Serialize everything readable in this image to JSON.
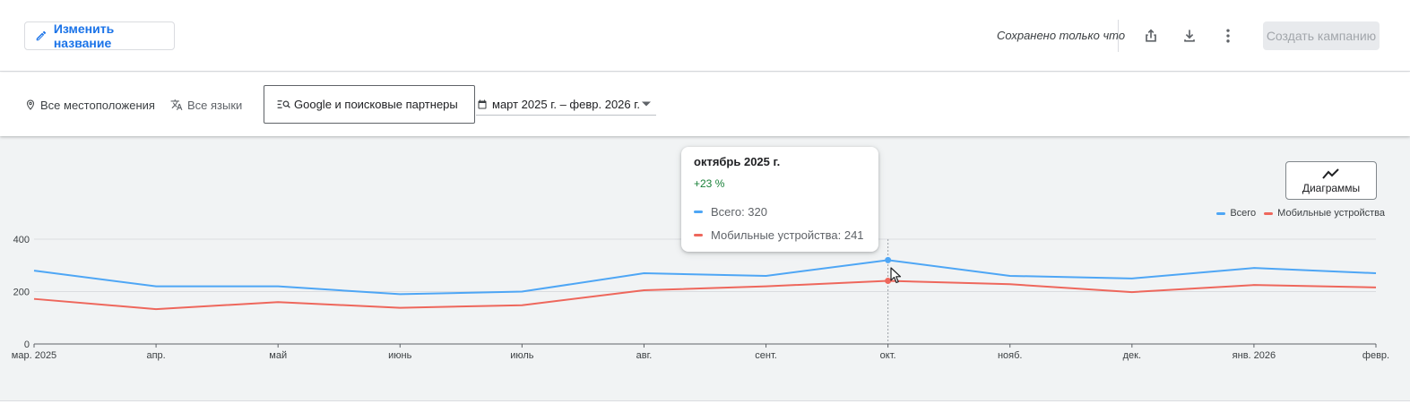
{
  "header": {
    "rename_label": "Изменить название",
    "saved_status": "Сохранено только что",
    "create_campaign_label": "Создать кампанию",
    "icons": [
      "pencil-icon",
      "share-icon",
      "download-icon",
      "more-vert-icon"
    ]
  },
  "filters": {
    "location": "Все местоположения",
    "language": "Все языки",
    "network": "Google и поисковые партнеры",
    "date_range": "март 2025 г. – февр. 2026 г."
  },
  "chart_panel": {
    "charts_button_label": "Диаграммы",
    "tooltip": {
      "title": "октябрь 2025 г.",
      "change": "+23 %",
      "rows": [
        {
          "label": "Всего: 320"
        },
        {
          "label": "Мобильные устройства: 241"
        }
      ]
    }
  },
  "colors": {
    "total": "#4ea6f5",
    "mobile": "#ee675c",
    "accent": "#1a73e8",
    "positive": "#188038"
  },
  "chart_data": {
    "type": "line",
    "categories": [
      "мар. 2025",
      "апр.",
      "май",
      "июнь",
      "июль",
      "авг.",
      "сент.",
      "окт.",
      "нояб.",
      "дек.",
      "янв. 2026",
      "февр."
    ],
    "series": [
      {
        "name": "Всего",
        "values": [
          280,
          220,
          220,
          190,
          200,
          270,
          260,
          320,
          260,
          250,
          290,
          270
        ]
      },
      {
        "name": "Мобильные устройства",
        "values": [
          172,
          133,
          160,
          138,
          148,
          205,
          220,
          241,
          228,
          198,
          225,
          216
        ]
      }
    ],
    "yticks": [
      0,
      200,
      400
    ],
    "ylim": [
      0,
      400
    ],
    "highlight_index": 7,
    "grid": true,
    "legend_position": "top-right"
  }
}
